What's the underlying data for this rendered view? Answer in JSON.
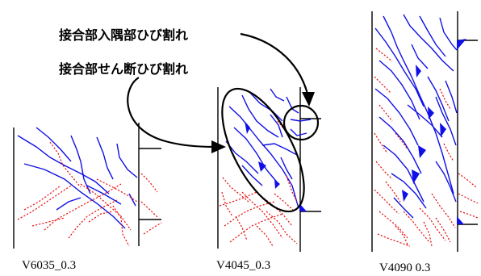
{
  "annotations": {
    "corner_crack": "接合部入隅部ひび割れ",
    "shear_crack": "接合部せん断ひび割れ"
  },
  "specimens": [
    {
      "id": "V6035_0.3"
    },
    {
      "id": "V4045_0.3"
    },
    {
      "id": "V4090 0.3"
    }
  ],
  "colors": {
    "crack_solid": "#1010e6",
    "crack_dashed": "#e61010"
  }
}
